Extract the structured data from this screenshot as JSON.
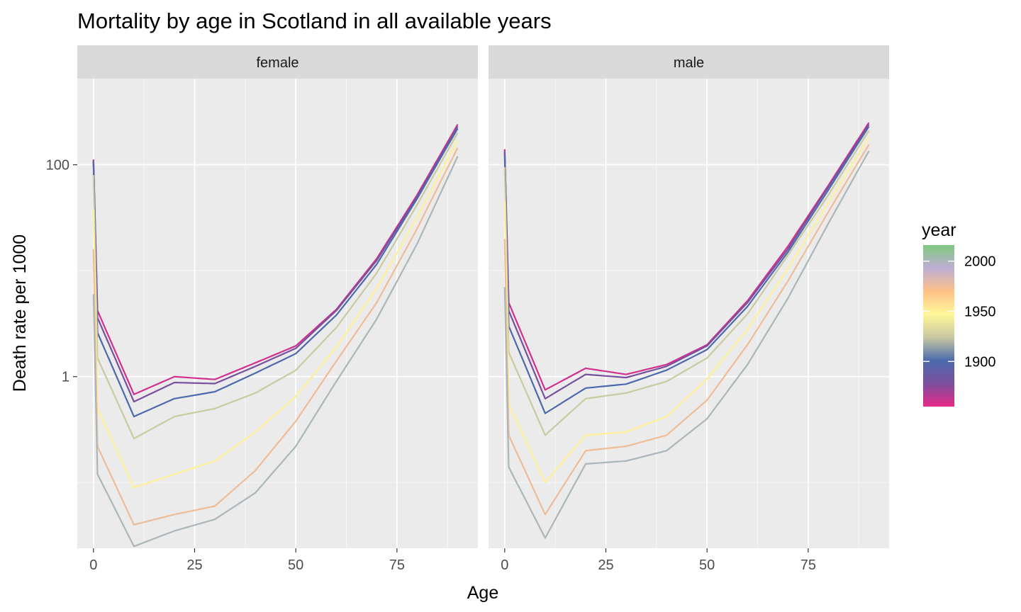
{
  "chart_data": {
    "type": "line",
    "title": "Mortality by age in Scotland in all available years",
    "xlabel": "Age",
    "ylabel": "Death rate per 1000",
    "x_ticks": [
      0,
      25,
      50,
      75
    ],
    "y_ticks": [
      {
        "value": 100,
        "label": "100"
      },
      {
        "value": 1,
        "label": "1"
      }
    ],
    "xlim": [
      -4,
      95
    ],
    "ylim": [
      0.024,
      650
    ],
    "y_scale": "log",
    "grid": true,
    "facets": [
      "female",
      "male"
    ],
    "legend": {
      "title": "year",
      "position": "right",
      "breaks": [
        2000,
        1950,
        1900
      ],
      "range": [
        1855,
        2016
      ],
      "colors": [
        "#e7298a",
        "#7b4f9d",
        "#4b6aad",
        "#c8c8a0",
        "#fff799",
        "#fdc086",
        "#beaed4",
        "#7fc97f"
      ]
    },
    "series": [
      {
        "facet": "female",
        "year": 1860,
        "approx_y": [
          112,
          4.2,
          0.68,
          1.0,
          0.94,
          1.35,
          1.95,
          4.3,
          13,
          52,
          240
        ]
      },
      {
        "facet": "female",
        "year": 1880,
        "approx_y": [
          110,
          3.6,
          0.58,
          0.88,
          0.86,
          1.25,
          1.85,
          4.2,
          12.5,
          50,
          230
        ]
      },
      {
        "facet": "female",
        "year": 1900,
        "approx_y": [
          105,
          2.6,
          0.42,
          0.62,
          0.72,
          1.08,
          1.65,
          3.8,
          11.5,
          48,
          220
        ]
      },
      {
        "facet": "female",
        "year": 1925,
        "approx_y": [
          80,
          1.5,
          0.26,
          0.42,
          0.5,
          0.7,
          1.15,
          2.9,
          9.5,
          42,
          200
        ]
      },
      {
        "facet": "female",
        "year": 1950,
        "approx_y": [
          38,
          0.5,
          0.09,
          0.12,
          0.16,
          0.3,
          0.65,
          1.9,
          6.8,
          32,
          170
        ]
      },
      {
        "facet": "female",
        "year": 1975,
        "approx_y": [
          16,
          0.22,
          0.04,
          0.05,
          0.06,
          0.13,
          0.38,
          1.4,
          5.0,
          25,
          145
        ]
      },
      {
        "facet": "female",
        "year": 2000,
        "approx_y": [
          6,
          0.12,
          0.025,
          0.035,
          0.045,
          0.08,
          0.22,
          0.9,
          3.5,
          18,
          120
        ]
      },
      {
        "facet": "male",
        "year": 1860,
        "approx_y": [
          140,
          5.0,
          0.75,
          1.2,
          1.05,
          1.3,
          2.0,
          5.2,
          17,
          64,
          250
        ]
      },
      {
        "facet": "male",
        "year": 1880,
        "approx_y": [
          135,
          4.2,
          0.62,
          1.05,
          0.98,
          1.25,
          1.95,
          5.0,
          16,
          62,
          240
        ]
      },
      {
        "facet": "male",
        "year": 1900,
        "approx_y": [
          125,
          3.0,
          0.45,
          0.78,
          0.85,
          1.15,
          1.8,
          4.6,
          15,
          58,
          230
        ]
      },
      {
        "facet": "male",
        "year": 1925,
        "approx_y": [
          95,
          1.7,
          0.28,
          0.62,
          0.7,
          0.9,
          1.5,
          3.9,
          14,
          52,
          210
        ]
      },
      {
        "facet": "male",
        "year": 1950,
        "approx_y": [
          45,
          0.55,
          0.1,
          0.28,
          0.3,
          0.42,
          0.95,
          2.8,
          10.5,
          44,
          180
        ]
      },
      {
        "facet": "male",
        "year": 1975,
        "approx_y": [
          20,
          0.28,
          0.05,
          0.2,
          0.22,
          0.28,
          0.6,
          2.0,
          8.0,
          36,
          155
        ]
      },
      {
        "facet": "male",
        "year": 2000,
        "approx_y": [
          7,
          0.14,
          0.03,
          0.15,
          0.16,
          0.2,
          0.4,
          1.3,
          5.5,
          28,
          135
        ]
      }
    ],
    "approx_x": [
      0,
      1,
      10,
      20,
      30,
      40,
      50,
      60,
      70,
      80,
      90
    ]
  }
}
